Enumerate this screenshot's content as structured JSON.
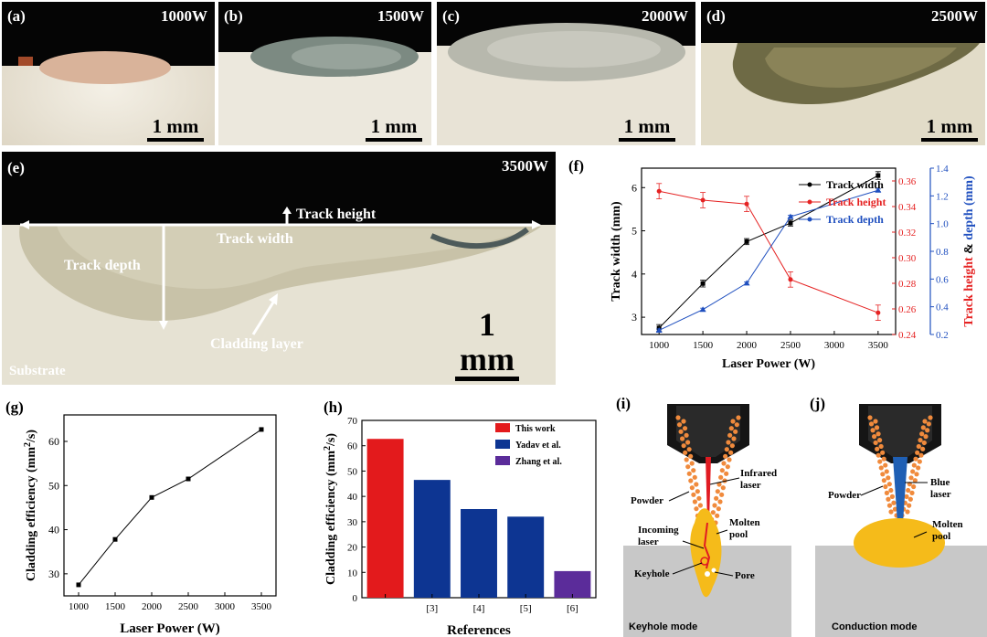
{
  "panels": {
    "a": {
      "label": "(a)",
      "power": "1000W",
      "scale": "1 mm"
    },
    "b": {
      "label": "(b)",
      "power": "1500W",
      "scale": "1 mm"
    },
    "c": {
      "label": "(c)",
      "power": "2000W",
      "scale": "1 mm"
    },
    "d": {
      "label": "(d)",
      "power": "2500W",
      "scale": "1 mm"
    },
    "e": {
      "label": "(e)",
      "power": "3500W",
      "scale": "1 mm",
      "annotations": {
        "track_height": "Track height",
        "track_width": "Track width",
        "track_depth": "Track depth",
        "cladding_layer": "Cladding layer",
        "substrate": "Substrate"
      }
    },
    "f": {
      "label": "(f)"
    },
    "g": {
      "label": "(g)"
    },
    "h": {
      "label": "(h)"
    },
    "i": {
      "label": "(i)",
      "powder": "Powder",
      "laser": "Infrared\nlaser",
      "incoming": "Incoming\nlaser",
      "molten": "Molten\npool",
      "keyhole": "Keyhole",
      "pore": "Pore",
      "mode": "Keyhole mode",
      "laser_color": "#e11b22"
    },
    "j": {
      "label": "(j)",
      "powder": "Powder",
      "laser": "Blue\nlaser",
      "molten": "Molten\npool",
      "mode": "Conduction mode",
      "laser_color": "#1f5fb4"
    }
  },
  "colors": {
    "pool": "#f5bb1a",
    "powder": "#f08a3c",
    "substrate": "#c8c8c8",
    "nozzle": "#1a1a1a"
  },
  "chart_data": [
    {
      "id": "f",
      "type": "line",
      "x": [
        1000,
        1500,
        2000,
        2500,
        3500
      ],
      "xlabel": "Laser Power (W)",
      "xlim": [
        800,
        3700
      ],
      "xticks": [
        1000,
        1500,
        2000,
        2500,
        3000,
        3500
      ],
      "ylabel": "Track width (mm)",
      "ylim": [
        2.6,
        6.45
      ],
      "yticks": [
        3,
        4,
        5,
        6
      ],
      "y2label_parts": [
        "Track height",
        "&",
        "depth",
        "(mm)"
      ],
      "y2lim": [
        0.24,
        0.37
      ],
      "y2ticks": [
        0.24,
        0.26,
        0.28,
        0.3,
        0.32,
        0.34,
        0.36
      ],
      "y3lim": [
        0.2,
        1.4
      ],
      "y3ticks": [
        0.2,
        0.4,
        0.6,
        0.8,
        1.0,
        1.2,
        1.4
      ],
      "series": [
        {
          "name": "Track width",
          "axis": "left",
          "color": "#000000",
          "marker": "square",
          "values": [
            2.75,
            3.78,
            4.75,
            5.18,
            6.28
          ],
          "errors": [
            0.08,
            0.08,
            0.07,
            0.07,
            0.09
          ]
        },
        {
          "name": "Track height",
          "axis": "right",
          "color": "#e52222",
          "marker": "dot",
          "values": [
            0.352,
            0.345,
            0.342,
            0.283,
            0.257
          ],
          "errors": [
            0.006,
            0.006,
            0.006,
            0.006,
            0.006
          ]
        },
        {
          "name": "Track depth",
          "axis": "right2",
          "color": "#1f4fbf",
          "marker": "triangle",
          "values": [
            0.23,
            0.38,
            0.57,
            1.05,
            1.24
          ],
          "errors": [
            0.01,
            0.01,
            0.01,
            0.01,
            0.01
          ]
        }
      ],
      "legend": "center-right"
    },
    {
      "id": "g",
      "type": "line",
      "x": [
        1000,
        1500,
        2000,
        2500,
        3500
      ],
      "values": [
        27.5,
        37.8,
        47.3,
        51.5,
        62.7
      ],
      "xlabel": "Laser Power (W)",
      "ylabel_main": "Cladding efficiency (mm",
      "ylabel_sup": "2",
      "ylabel_end": "/s)",
      "xlim": [
        800,
        3700
      ],
      "xticks": [
        1000,
        1500,
        2000,
        2500,
        3000,
        3500
      ],
      "ylim": [
        25,
        66
      ],
      "yticks": [
        30,
        40,
        50,
        60
      ]
    },
    {
      "id": "h",
      "type": "bar",
      "categories": [
        "",
        "[3]",
        "[4]",
        "[5]",
        "[6]"
      ],
      "values": [
        62.7,
        46.5,
        35,
        32,
        10.5
      ],
      "bar_colors": [
        "#e31a1c",
        "#0d3592",
        "#0d3592",
        "#0d3592",
        "#5b2c9a"
      ],
      "xlabel": "References",
      "ylabel_main": "Cladding efficiency (mm",
      "ylabel_sup": "2",
      "ylabel_end": "/s)",
      "ylim": [
        0,
        70
      ],
      "yticks": [
        0,
        10,
        20,
        30,
        40,
        50,
        60,
        70
      ],
      "legend_entries": [
        {
          "name": "This work",
          "color": "#e31a1c"
        },
        {
          "name": "Yadav et al.",
          "color": "#0d3592"
        },
        {
          "name": "Zhang et al.",
          "color": "#5b2c9a"
        }
      ]
    }
  ]
}
